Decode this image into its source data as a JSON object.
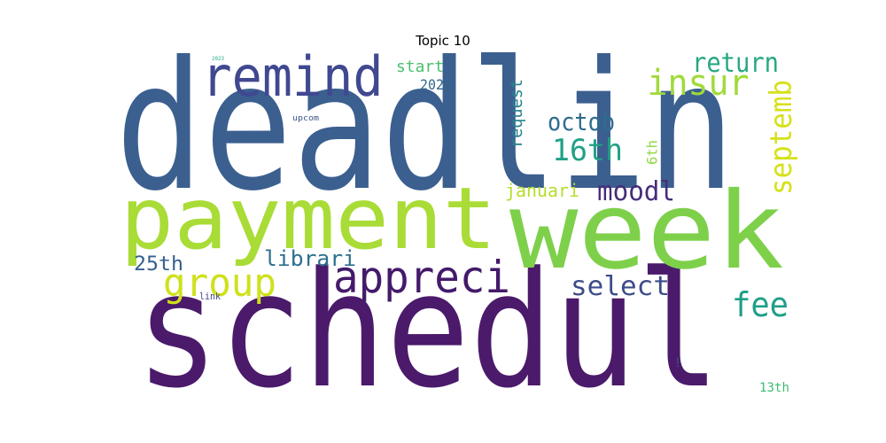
{
  "chart_data": {
    "type": "wordcloud",
    "title": "Topic 10",
    "words": [
      {
        "text": "deadlin",
        "weight": 1.0,
        "color": "#3b5f8f",
        "orientation": "horizontal"
      },
      {
        "text": "schedul",
        "weight": 0.97,
        "color": "#4b1a6b",
        "orientation": "horizontal"
      },
      {
        "text": "week",
        "weight": 0.82,
        "color": "#7ed04b",
        "orientation": "horizontal"
      },
      {
        "text": "payment",
        "weight": 0.68,
        "color": "#a9dc36",
        "orientation": "horizontal"
      },
      {
        "text": "remind",
        "weight": 0.38,
        "color": "#404890",
        "orientation": "horizontal"
      },
      {
        "text": "appreci",
        "weight": 0.33,
        "color": "#441a6a",
        "orientation": "horizontal"
      },
      {
        "text": "insur",
        "weight": 0.26,
        "color": "#a0da39",
        "orientation": "horizontal"
      },
      {
        "text": "group",
        "weight": 0.26,
        "color": "#cfe11c",
        "orientation": "horizontal"
      },
      {
        "text": "return",
        "weight": 0.19,
        "color": "#27a882",
        "orientation": "horizontal"
      },
      {
        "text": "16th",
        "weight": 0.24,
        "color": "#21a085",
        "orientation": "horizontal"
      },
      {
        "text": "septemb",
        "weight": 0.23,
        "color": "#d6e11a",
        "orientation": "vertical"
      },
      {
        "text": "octob",
        "weight": 0.17,
        "color": "#2e6d8e",
        "orientation": "horizontal"
      },
      {
        "text": "moodl",
        "weight": 0.2,
        "color": "#472d7b",
        "orientation": "horizontal"
      },
      {
        "text": "fee",
        "weight": 0.23,
        "color": "#1f9f88",
        "orientation": "horizontal"
      },
      {
        "text": "select",
        "weight": 0.18,
        "color": "#3e4c8a",
        "orientation": "horizontal"
      },
      {
        "text": "librari",
        "weight": 0.15,
        "color": "#2e6f8e",
        "orientation": "horizontal"
      },
      {
        "text": "januari",
        "weight": 0.13,
        "color": "#b5de2b",
        "orientation": "horizontal"
      },
      {
        "text": "25th",
        "weight": 0.13,
        "color": "#35608d",
        "orientation": "horizontal"
      },
      {
        "text": "request",
        "weight": 0.12,
        "color": "#26828e",
        "orientation": "vertical"
      },
      {
        "text": "start",
        "weight": 0.1,
        "color": "#4ac16d",
        "orientation": "horizontal"
      },
      {
        "text": "2020",
        "weight": 0.09,
        "color": "#31688e",
        "orientation": "horizontal"
      },
      {
        "text": "6th",
        "weight": 0.09,
        "color": "#8fd744",
        "orientation": "vertical"
      },
      {
        "text": "13th",
        "weight": 0.07,
        "color": "#3dbc74",
        "orientation": "horizontal"
      },
      {
        "text": "link",
        "weight": 0.05,
        "color": "#404688",
        "orientation": "horizontal"
      },
      {
        "text": "upcom",
        "weight": 0.04,
        "color": "#3b528b",
        "orientation": "horizontal"
      },
      {
        "text": "2023",
        "weight": 0.02,
        "color": "#22a884",
        "orientation": "horizontal"
      },
      {
        "text": "!",
        "weight": 0.05,
        "color": "#2c728e",
        "orientation": "horizontal"
      }
    ]
  }
}
